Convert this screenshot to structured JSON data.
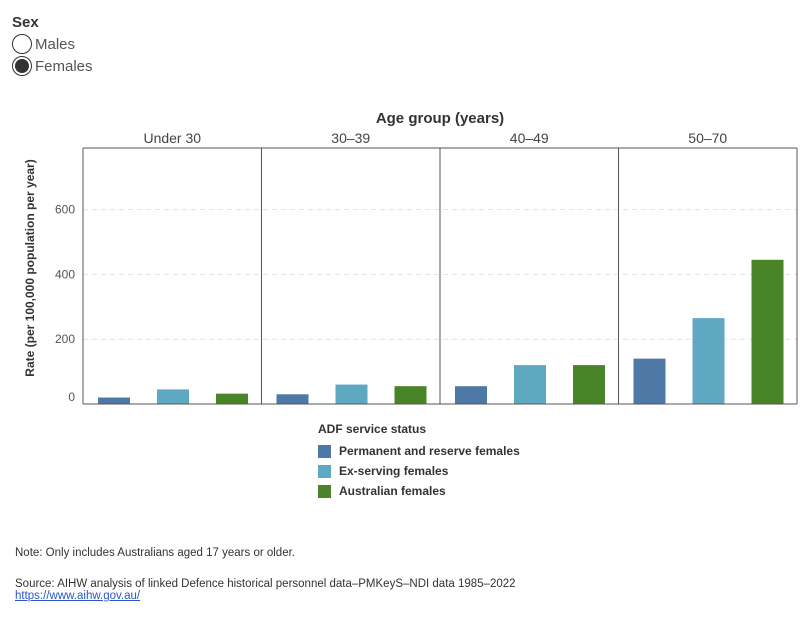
{
  "filter": {
    "title": "Sex",
    "options": [
      {
        "label": "Males",
        "selected": false
      },
      {
        "label": "Females",
        "selected": true
      }
    ]
  },
  "chart_data": {
    "type": "bar",
    "title": "Age group (years)",
    "ylabel": "Rate (per 100,000 population per year)",
    "ylim": [
      0,
      790
    ],
    "yticks": [
      0,
      200,
      400,
      600
    ],
    "grid": true,
    "panels": [
      "Under 30",
      "30–39",
      "40–49",
      "50–70"
    ],
    "legend_title": "ADF service status",
    "legend_position": "bottom-center",
    "series": [
      {
        "name": "Permanent and reserve females",
        "color": "#4e79a7",
        "values": [
          20,
          30,
          55,
          140
        ]
      },
      {
        "name": "Ex-serving females",
        "color": "#5fa8c2",
        "values": [
          45,
          60,
          120,
          265
        ]
      },
      {
        "name": "Australian females",
        "color": "#4a8428",
        "values": [
          32,
          55,
          120,
          445
        ]
      }
    ]
  },
  "footer": {
    "note": "Note: Only includes Australians aged 17 years or older.",
    "source": "Source: AIHW analysis of linked Defence historical personnel data–PMKeyS–NDI data 1985–2022",
    "link": "https://www.aihw.gov.au/"
  }
}
